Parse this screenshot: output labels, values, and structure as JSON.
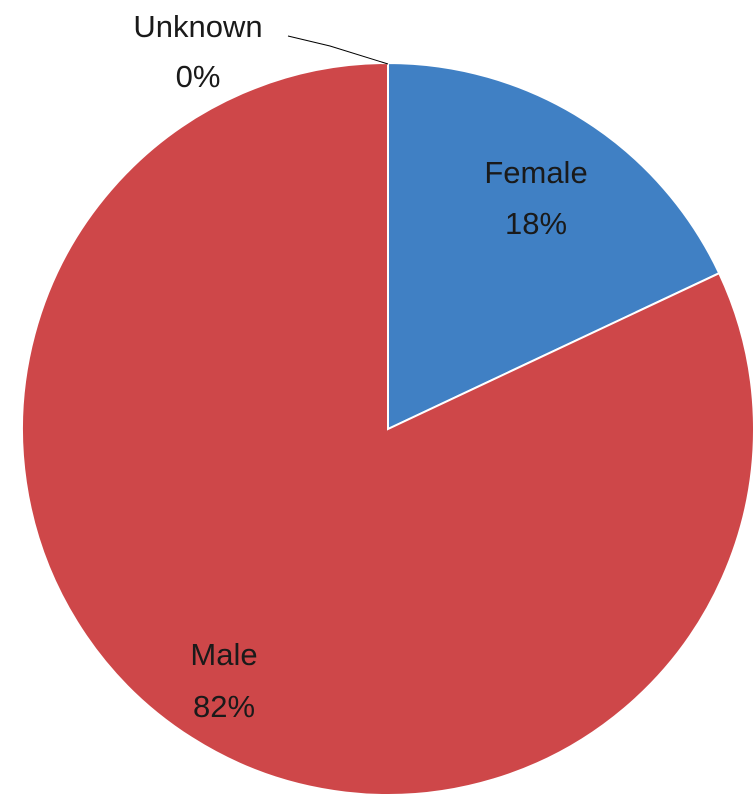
{
  "chart_data": {
    "type": "pie",
    "title": "",
    "start_angle_deg": 0,
    "direction": "clockwise",
    "slices": [
      {
        "label": "Female",
        "percent_label": "18%",
        "value": 18,
        "color": "#4080c4"
      },
      {
        "label": "Male",
        "percent_label": "82%",
        "value": 82,
        "color": "#ce4749"
      },
      {
        "label": "Unknown",
        "percent_label": "0%",
        "value": 0,
        "color": "#8aab48"
      }
    ]
  }
}
